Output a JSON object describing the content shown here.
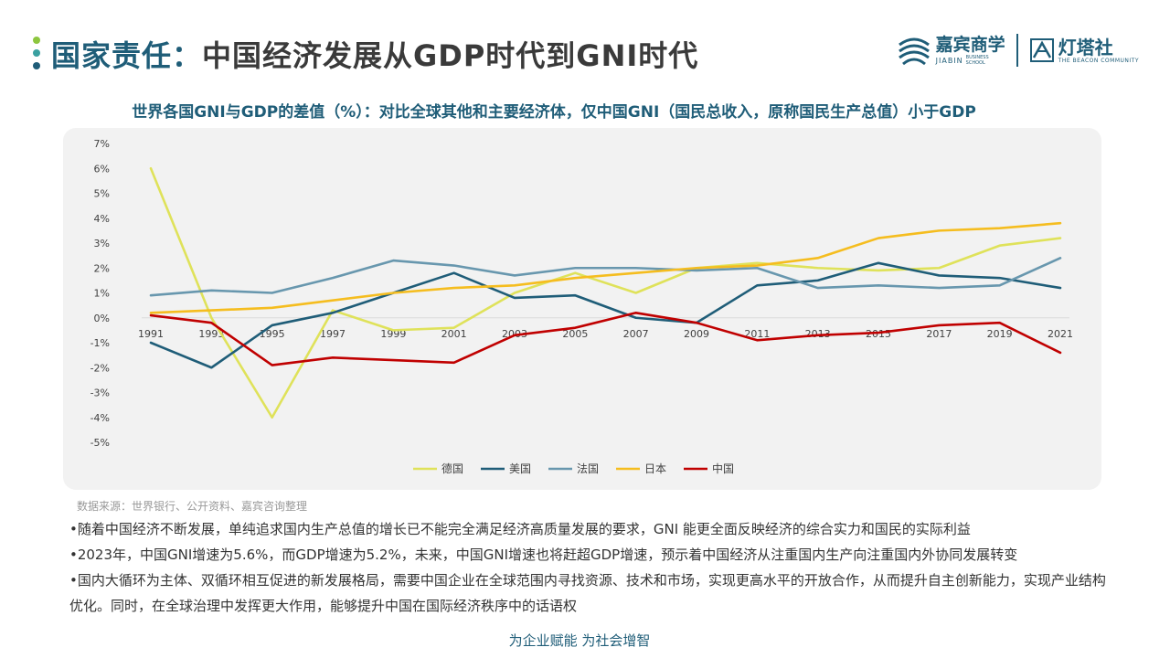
{
  "header": {
    "title_accent": "国家责任：",
    "title_rest": "中国经济发展从GDP时代到GNI时代",
    "dot_colors": [
      "#8dc63f",
      "#3aa0a0",
      "#1f5d78"
    ]
  },
  "logos": {
    "jiabin_cn": "嘉宾商学",
    "jiabin_en": "JIABIN",
    "jiabin_en_small": "BUSINESS SCHOOL",
    "beacon_cn": "灯塔社",
    "beacon_en": "THE BEACON COMMUNITY"
  },
  "chart_subtitle": "世界各国GNI与GDP的差值（%）：对比全球其他和主要经济体，仅中国GNI（国民总收入，原称国民生产总值）小于GDP",
  "chart_data": {
    "type": "line",
    "x": [
      "1991",
      "1993",
      "1995",
      "1997",
      "1999",
      "2001",
      "2003",
      "2005",
      "2007",
      "2009",
      "2011",
      "2013",
      "2015",
      "2017",
      "2019",
      "2021"
    ],
    "ylim": [
      -5,
      7
    ],
    "yticks": [
      "7%",
      "6%",
      "5%",
      "4%",
      "3%",
      "2%",
      "1%",
      "0%",
      "-1%",
      "-2%",
      "-3%",
      "-4%",
      "-5%"
    ],
    "legend_position": "bottom",
    "series": [
      {
        "name": "德国",
        "color": "#dfe25a",
        "values": [
          6.0,
          0.0,
          -4.0,
          0.3,
          -0.5,
          -0.4,
          1.0,
          1.8,
          1.0,
          2.0,
          2.2,
          2.0,
          1.9,
          2.0,
          2.9,
          3.2
        ]
      },
      {
        "name": "美国",
        "color": "#1f5d78",
        "values": [
          -1.0,
          -2.0,
          -0.3,
          0.2,
          1.0,
          1.8,
          0.8,
          0.9,
          0.0,
          -0.2,
          1.3,
          1.5,
          2.2,
          1.7,
          1.6,
          1.2
        ]
      },
      {
        "name": "法国",
        "color": "#6897ae",
        "values": [
          0.9,
          1.1,
          1.0,
          1.6,
          2.3,
          2.1,
          1.7,
          2.0,
          2.0,
          1.9,
          2.0,
          1.2,
          1.3,
          1.2,
          1.3,
          2.4
        ]
      },
      {
        "name": "日本",
        "color": "#f5bd1f",
        "values": [
          0.2,
          0.3,
          0.4,
          0.7,
          1.0,
          1.2,
          1.3,
          1.6,
          1.8,
          2.0,
          2.1,
          2.4,
          3.2,
          3.5,
          3.6,
          3.8
        ]
      },
      {
        "name": "中国",
        "color": "#c00000",
        "values": [
          0.1,
          -0.2,
          -1.9,
          -1.6,
          -1.7,
          -1.8,
          -0.7,
          -0.4,
          0.2,
          -0.2,
          -0.9,
          -0.7,
          -0.6,
          -0.3,
          -0.2,
          -1.4
        ]
      }
    ]
  },
  "source": "数据来源：世界银行、公开资料、嘉宾咨询整理",
  "bullets": [
    "•随着中国经济不断发展，单纯追求国内生产总值的增长已不能完全满足经济高质量发展的要求，GNI 能更全面反映经济的综合实力和国民的实际利益",
    "•2023年，中国GNI增速为5.6%，而GDP增速为5.2%，未来，中国GNI增速也将赶超GDP增速，预示着中国经济从注重国内生产向注重国内外协同发展转变",
    "•国内大循环为主体、双循环相互促进的新发展格局，需要中国企业在全球范围内寻找资源、技术和市场，实现更高水平的开放合作，从而提升自主创新能力，实现产业结构优化。同时，在全球治理中发挥更大作用，能够提升中国在国际经济秩序中的话语权"
  ],
  "footer": "为企业赋能  为社会增智"
}
